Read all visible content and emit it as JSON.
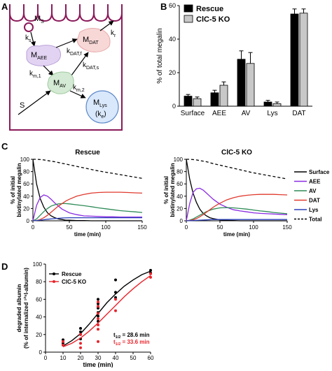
{
  "panels": {
    "A": "A",
    "B": "B",
    "C": "C",
    "D": "D"
  },
  "diagram": {
    "ms_main": "M",
    "ms_sub": "S",
    "ks_main": "k",
    "ks_sub": "s",
    "maee_main": "M",
    "maee_sub": "AEE",
    "mdat_main": "M",
    "mdat_sub": "DAT",
    "kr_main": "k",
    "kr_sub": "r",
    "kdatf_main": "k",
    "kdatf_sub": "DAT,f",
    "kdats_main": "k",
    "kdats_sub": "DAT,s",
    "km1_main": "k",
    "km1_sub": "m,1",
    "mav_main": "M",
    "mav_sub": "AV",
    "km2_main": "k",
    "km2_sub": "m,2",
    "s_label": "S",
    "mlys_main": "M",
    "mlys_sub": "Lys",
    "ke_main": "(k",
    "ke_sub": "e",
    "ke_close": ")"
  },
  "chart_data": [
    {
      "panel": "B",
      "type": "bar",
      "ylabel": "% of total megalin",
      "ylim": [
        0,
        60
      ],
      "yticks": [
        "0",
        "20",
        "40",
        "60"
      ],
      "categories": [
        "Surface",
        "AEE",
        "AV",
        "Lys",
        "DAT"
      ],
      "legend_position": "top-left",
      "series": [
        {
          "name": "Rescue",
          "color": "#000000",
          "values": [
            6,
            8,
            28,
            2.5,
            55
          ],
          "errors": [
            1,
            1.5,
            5,
            1,
            3
          ]
        },
        {
          "name": "ClC-5 KO",
          "color": "#c8c8c8",
          "values": [
            4.5,
            12.5,
            25.5,
            1.5,
            55.5
          ],
          "errors": [
            1,
            2,
            6.5,
            1,
            2.5
          ]
        }
      ]
    },
    {
      "panel": "C",
      "type": "line",
      "title": "Rescue",
      "xlabel": "time (min)",
      "ylabel_lines": [
        "% of initial",
        "biotinylated megalin"
      ],
      "xlim": [
        0,
        150
      ],
      "ylim": [
        0,
        100
      ],
      "xticks": [
        "0",
        "50",
        "100",
        "150"
      ],
      "yticks": [
        "0",
        "20",
        "40",
        "60",
        "80",
        "100"
      ],
      "series": [
        {
          "name": "Surface",
          "color": "#000000",
          "x": [
            0,
            5,
            10,
            15,
            20,
            25,
            30,
            35,
            40,
            45,
            50,
            60,
            70,
            80,
            90,
            100,
            110,
            120,
            130,
            140,
            150
          ],
          "y": [
            100,
            60,
            36,
            22,
            13,
            8,
            5,
            3,
            2,
            1,
            1,
            0.5,
            0.5,
            0,
            0,
            0,
            0,
            0,
            0,
            0,
            0
          ]
        },
        {
          "name": "AEE",
          "color": "#8a2be2",
          "x": [
            0,
            5,
            10,
            15,
            20,
            25,
            30,
            35,
            40,
            45,
            50,
            60,
            70,
            80,
            90,
            100,
            110,
            120,
            130,
            140,
            150
          ],
          "y": [
            0,
            25,
            38,
            42,
            40,
            35,
            29,
            24,
            19,
            16,
            13,
            10,
            8,
            7.5,
            7,
            6.5,
            6.5,
            6,
            6,
            6,
            6
          ]
        },
        {
          "name": "AV",
          "color": "#2e8b57",
          "x": [
            0,
            5,
            10,
            15,
            20,
            25,
            30,
            35,
            40,
            45,
            50,
            60,
            70,
            80,
            90,
            100,
            110,
            120,
            130,
            140,
            150
          ],
          "y": [
            0,
            3,
            9,
            15,
            20,
            24,
            26,
            27.5,
            28,
            28,
            27.5,
            26,
            24.5,
            23,
            21,
            19.5,
            18,
            16.5,
            15.5,
            14.5,
            13.5
          ]
        },
        {
          "name": "DAT",
          "color": "#e03a2f",
          "x": [
            0,
            5,
            10,
            15,
            20,
            25,
            30,
            35,
            40,
            45,
            50,
            60,
            70,
            80,
            90,
            100,
            110,
            120,
            130,
            140,
            150
          ],
          "y": [
            0,
            0.5,
            2,
            5,
            9,
            14,
            19,
            24,
            28,
            32,
            35,
            40,
            43,
            45,
            46,
            46.5,
            46.5,
            46.5,
            46,
            45.5,
            45
          ]
        },
        {
          "name": "Lys",
          "color": "#2b3fb8",
          "x": [
            0,
            10,
            20,
            30,
            40,
            50,
            60,
            80,
            100,
            120,
            150
          ],
          "y": [
            0,
            1,
            2.5,
            3.5,
            4.5,
            5,
            5,
            5,
            5,
            5,
            5
          ]
        },
        {
          "name": "Total",
          "color": "#000000",
          "dashed": true,
          "x": [
            0,
            5,
            10,
            15,
            20,
            30,
            40,
            50,
            60,
            70,
            80,
            90,
            100,
            110,
            120,
            130,
            140,
            150
          ],
          "y": [
            100,
            100,
            99.5,
            99,
            98,
            96,
            93.5,
            91,
            88.5,
            86,
            83.5,
            81,
            79,
            77,
            75,
            73,
            71,
            69
          ]
        }
      ]
    },
    {
      "panel": "C",
      "type": "line",
      "title": "ClC-5 KO",
      "xlabel": "time (min)",
      "ylabel_lines": [
        "% of initial",
        "biotinylated megalin"
      ],
      "xlim": [
        0,
        150
      ],
      "ylim": [
        0,
        100
      ],
      "xticks": [
        "0",
        "50",
        "100",
        "150"
      ],
      "yticks": [
        "0",
        "20",
        "40",
        "60",
        "80",
        "100"
      ],
      "series": [
        {
          "name": "Surface",
          "color": "#000000",
          "x": [
            0,
            5,
            10,
            15,
            20,
            25,
            30,
            35,
            40,
            45,
            50,
            60,
            70,
            80,
            90,
            100,
            110,
            120,
            130,
            140,
            150
          ],
          "y": [
            100,
            68,
            45,
            30,
            19,
            12,
            8,
            5,
            3.5,
            2.5,
            1.5,
            1,
            0.5,
            0,
            0,
            0,
            0,
            0,
            0,
            0,
            0
          ]
        },
        {
          "name": "AEE",
          "color": "#8a2be2",
          "x": [
            0,
            5,
            10,
            15,
            20,
            25,
            30,
            35,
            40,
            45,
            50,
            60,
            70,
            80,
            90,
            100,
            110,
            120,
            130,
            140,
            150
          ],
          "y": [
            0,
            28,
            46,
            52,
            53,
            50,
            45,
            40,
            35,
            31,
            27,
            22,
            18,
            16,
            14.5,
            13,
            12,
            11.5,
            11,
            10.5,
            10
          ]
        },
        {
          "name": "AV",
          "color": "#2e8b57",
          "x": [
            0,
            5,
            10,
            15,
            20,
            25,
            30,
            35,
            40,
            45,
            50,
            60,
            70,
            80,
            90,
            100,
            110,
            120,
            130,
            140,
            150
          ],
          "y": [
            0,
            1,
            3,
            6,
            9,
            12,
            15,
            17,
            19,
            20,
            21,
            21.5,
            21,
            20,
            19,
            17.5,
            16,
            15,
            13.5,
            12.5,
            11.5
          ]
        },
        {
          "name": "DAT",
          "color": "#e03a2f",
          "x": [
            0,
            5,
            10,
            15,
            20,
            25,
            30,
            35,
            40,
            45,
            50,
            60,
            70,
            80,
            90,
            100,
            110,
            120,
            130,
            140,
            150
          ],
          "y": [
            0,
            0.5,
            1.5,
            3.5,
            6.5,
            10,
            14,
            18,
            22,
            25.5,
            28.5,
            34,
            37.5,
            40,
            41.5,
            42.5,
            43,
            43,
            43,
            42.5,
            42
          ]
        },
        {
          "name": "Lys",
          "color": "#2b3fb8",
          "x": [
            0,
            10,
            20,
            30,
            40,
            50,
            60,
            80,
            100,
            120,
            150
          ],
          "y": [
            0,
            0.5,
            1,
            1.5,
            2,
            2,
            2,
            2,
            2,
            2,
            2
          ]
        },
        {
          "name": "Total",
          "color": "#000000",
          "dashed": true,
          "x": [
            0,
            5,
            10,
            15,
            20,
            30,
            40,
            50,
            60,
            70,
            80,
            90,
            100,
            110,
            120,
            130,
            140,
            150
          ],
          "y": [
            100,
            100,
            99.5,
            99,
            98,
            96,
            93,
            90.5,
            88,
            85.5,
            83,
            80.5,
            78,
            76,
            74,
            72,
            70,
            68
          ]
        }
      ]
    },
    {
      "panel": "D",
      "type": "scatter",
      "xlabel": "time (min)",
      "ylabel_lines": [
        "degraded albumin",
        "(% of internalized ¹²⁵I-albumin)"
      ],
      "xlim": [
        0,
        60
      ],
      "ylim": [
        0,
        100
      ],
      "xticks": [
        "0",
        "10",
        "20",
        "30",
        "40",
        "50",
        "60"
      ],
      "yticks": [
        "0",
        "20",
        "40",
        "60",
        "80",
        "100"
      ],
      "legend_position": "top-left",
      "series": [
        {
          "name": "Rescue",
          "color": "#000000",
          "points": [
            [
              10,
              14
            ],
            [
              10,
              10
            ],
            [
              10,
              8
            ],
            [
              20,
              27
            ],
            [
              20,
              23
            ],
            [
              20,
              20
            ],
            [
              20,
              15
            ],
            [
              30,
              60
            ],
            [
              30,
              55
            ],
            [
              30,
              50
            ],
            [
              30,
              45
            ],
            [
              30,
              41
            ],
            [
              30,
              35
            ],
            [
              40,
              82
            ],
            [
              40,
              68
            ],
            [
              40,
              62
            ],
            [
              60,
              93
            ],
            [
              60,
              90
            ]
          ],
          "fit_x": [
            10,
            15,
            20,
            25,
            30,
            35,
            40,
            45,
            50,
            55,
            60
          ],
          "fit_y": [
            7,
            13,
            21,
            32,
            44,
            56,
            66,
            75,
            82,
            88,
            92
          ]
        },
        {
          "name": "ClC-5 KO",
          "color": "#e8242b",
          "points": [
            [
              10,
              12
            ],
            [
              10,
              8
            ],
            [
              20,
              20
            ],
            [
              20,
              10
            ],
            [
              20,
              5
            ],
            [
              30,
              57
            ],
            [
              30,
              52
            ],
            [
              30,
              44
            ],
            [
              30,
              38
            ],
            [
              30,
              31
            ],
            [
              30,
              26
            ],
            [
              30,
              12
            ],
            [
              40,
              60
            ],
            [
              40,
              47
            ],
            [
              60,
              89
            ],
            [
              60,
              85
            ]
          ],
          "fit_x": [
            10,
            15,
            20,
            25,
            30,
            35,
            40,
            45,
            50,
            55,
            60
          ],
          "fit_y": [
            6,
            10,
            16,
            24,
            33,
            43,
            53,
            63,
            72,
            80,
            87
          ]
        }
      ],
      "annotations": [
        {
          "t_main": "t",
          "t_sub": "1/2",
          "text": " = 28.6 min",
          "color": "#000000"
        },
        {
          "t_main": "t",
          "t_sub": "1/2",
          "text": " = 33.6 min",
          "color": "#e8242b"
        }
      ]
    }
  ]
}
